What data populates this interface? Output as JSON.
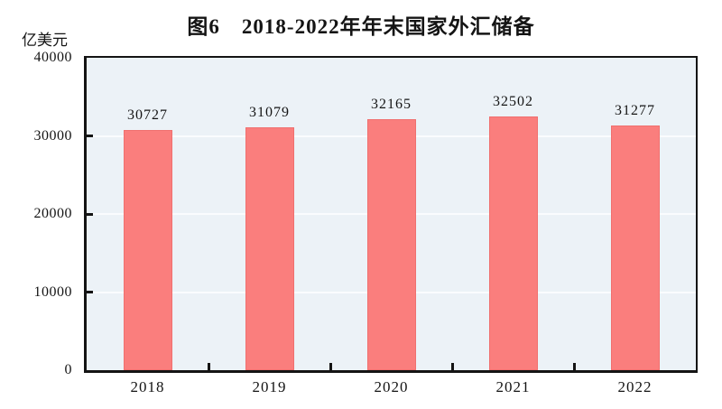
{
  "figure": {
    "title": "图6　2018-2022年年末国家外汇储备",
    "unit_label": "亿美元"
  },
  "chart_data": {
    "type": "bar",
    "title": "图6　2018-2022年年末国家外汇储备",
    "categories": [
      "2018",
      "2019",
      "2020",
      "2021",
      "2022"
    ],
    "values": [
      30727,
      31079,
      32165,
      32502,
      31277
    ],
    "xlabel": "",
    "ylabel": "亿美元",
    "ylim": [
      0,
      40000
    ],
    "yticks": [
      0,
      10000,
      20000,
      30000,
      40000
    ],
    "grid": true,
    "legend_position": "none",
    "bar_labels_shown": true,
    "colors": {
      "bar_fill": "#FA7E7D",
      "bar_edge": "#F0706F",
      "plot_background": "#ECF2F7",
      "gridline": "#FAFCFE",
      "axis": "#141414",
      "text": "#141414",
      "page_background": "#FFFFFF"
    }
  }
}
